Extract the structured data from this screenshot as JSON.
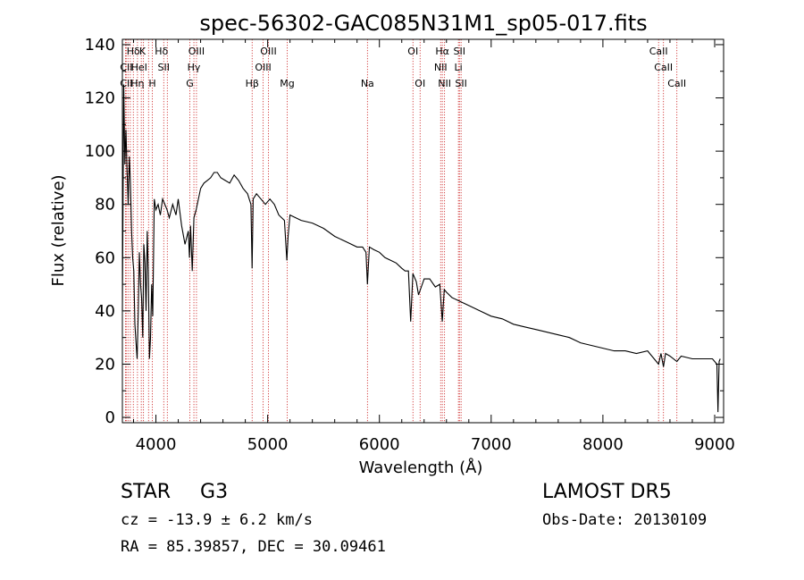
{
  "chart_data": {
    "type": "line",
    "title": "spec-56302-GAC085N31M1_sp05-017.fits",
    "xlabel": "Wavelength (Å)",
    "ylabel": "Flux (relative)",
    "xlim": [
      3700,
      9080
    ],
    "ylim": [
      -2,
      142
    ],
    "xticks": [
      4000,
      5000,
      6000,
      7000,
      8000,
      9000
    ],
    "yticks": [
      0,
      20,
      40,
      60,
      80,
      100,
      120,
      140
    ],
    "grid": false,
    "line_color": "#000000",
    "marker_color": "#cc2222",
    "series": [
      {
        "x": [
          3700,
          3712,
          3722,
          3732,
          3742,
          3752,
          3762,
          3772,
          3782,
          3792,
          3802,
          3812,
          3822,
          3832,
          3842,
          3852,
          3862,
          3872,
          3882,
          3892,
          3902,
          3912,
          3922,
          3932,
          3942,
          3952,
          3962,
          3972,
          3985,
          4000,
          4020,
          4040,
          4060,
          4080,
          4100,
          4120,
          4150,
          4180,
          4200,
          4230,
          4260,
          4290,
          4300,
          4310,
          4325,
          4340,
          4360,
          4380,
          4400,
          4430,
          4460,
          4490,
          4520,
          4550,
          4580,
          4620,
          4660,
          4700,
          4740,
          4780,
          4820,
          4850,
          4861,
          4870,
          4900,
          4940,
          4980,
          5020,
          5060,
          5100,
          5150,
          5172,
          5183,
          5200,
          5250,
          5300,
          5400,
          5500,
          5600,
          5700,
          5800,
          5850,
          5880,
          5893,
          5910,
          5950,
          6000,
          6050,
          6100,
          6150,
          6200,
          6230,
          6260,
          6280,
          6300,
          6330,
          6350,
          6400,
          6450,
          6500,
          6540,
          6563,
          6580,
          6600,
          6650,
          6700,
          6800,
          6900,
          7000,
          7100,
          7200,
          7300,
          7400,
          7500,
          7600,
          7700,
          7800,
          7900,
          8000,
          8100,
          8200,
          8300,
          8400,
          8498,
          8520,
          8542,
          8560,
          8600,
          8662,
          8700,
          8800,
          8900,
          8980,
          9020,
          9030,
          9040,
          9050
        ],
        "y": [
          40,
          125,
          95,
          108,
          92,
          80,
          98,
          88,
          70,
          60,
          55,
          35,
          28,
          22,
          40,
          62,
          50,
          45,
          30,
          65,
          58,
          40,
          70,
          55,
          22,
          30,
          50,
          38,
          82,
          78,
          80,
          76,
          82,
          80,
          78,
          75,
          80,
          76,
          82,
          72,
          65,
          70,
          60,
          72,
          55,
          75,
          78,
          82,
          86,
          88,
          89,
          90,
          92,
          92,
          90,
          89,
          88,
          91,
          89,
          86,
          84,
          80,
          56,
          82,
          84,
          82,
          80,
          82,
          80,
          76,
          74,
          59,
          68,
          76,
          75,
          74,
          73,
          71,
          68,
          66,
          64,
          64,
          62,
          50,
          64,
          63,
          62,
          60,
          59,
          58,
          56,
          55,
          55,
          36,
          54,
          51,
          46,
          52,
          52,
          49,
          50,
          36,
          48,
          47,
          45,
          44,
          42,
          40,
          38,
          37,
          35,
          34,
          33,
          32,
          31,
          30,
          28,
          27,
          26,
          25,
          25,
          24,
          25,
          20,
          24,
          19,
          24,
          23,
          21,
          23,
          22,
          22,
          22,
          20,
          2,
          21,
          22
        ]
      }
    ],
    "line_labels": [
      {
        "text": "Hδ",
        "x": 3798,
        "row": 0
      },
      {
        "text": "K",
        "x": 3880,
        "row": 0
      },
      {
        "text": "Hδ",
        "x": 4050,
        "row": 0
      },
      {
        "text": "OIII",
        "x": 4363,
        "row": 0
      },
      {
        "text": "OIII",
        "x": 5007,
        "row": 0
      },
      {
        "text": "OI",
        "x": 6300,
        "row": 0
      },
      {
        "text": "Hα",
        "x": 6563,
        "row": 0
      },
      {
        "text": "SII",
        "x": 6716,
        "row": 0
      },
      {
        "text": "CaII",
        "x": 8498,
        "row": 0
      },
      {
        "text": "CII",
        "x": 3735,
        "row": 1
      },
      {
        "text": "HeI",
        "x": 3850,
        "row": 1
      },
      {
        "text": "SII",
        "x": 4070,
        "row": 1
      },
      {
        "text": "Hγ",
        "x": 4340,
        "row": 1
      },
      {
        "text": "OIII",
        "x": 4960,
        "row": 1
      },
      {
        "text": "NII",
        "x": 6548,
        "row": 1
      },
      {
        "text": "Li",
        "x": 6707,
        "row": 1
      },
      {
        "text": "CaII",
        "x": 8542,
        "row": 1
      },
      {
        "text": "CII",
        "x": 3735,
        "row": 2
      },
      {
        "text": "Hη",
        "x": 3835,
        "row": 2
      },
      {
        "text": "H",
        "x": 3968,
        "row": 2
      },
      {
        "text": "G",
        "x": 4304,
        "row": 2
      },
      {
        "text": "Hβ",
        "x": 4861,
        "row": 2
      },
      {
        "text": "Mg",
        "x": 5175,
        "row": 2
      },
      {
        "text": "Na",
        "x": 5893,
        "row": 2
      },
      {
        "text": "OI",
        "x": 6364,
        "row": 2
      },
      {
        "text": "NII",
        "x": 6583,
        "row": 2
      },
      {
        "text": "SII",
        "x": 6731,
        "row": 2
      },
      {
        "text": "CaII",
        "x": 8662,
        "row": 2
      }
    ],
    "marker_lines": [
      3727,
      3734,
      3750,
      3771,
      3798,
      3835,
      3869,
      3889,
      3934,
      3968,
      4070,
      4102,
      4304,
      4340,
      4363,
      4861,
      4959,
      5007,
      5175,
      5893,
      6300,
      6364,
      6548,
      6563,
      6583,
      6707,
      6716,
      6731,
      8498,
      8542,
      8662
    ]
  },
  "info": {
    "object_class": "STAR",
    "subclass": "G3",
    "survey": "LAMOST DR5",
    "redshift_line": "cz = -13.9 ± 6.2 km/s",
    "obs_date": "Obs-Date: 20130109",
    "coords": "RA =  85.39857, DEC =  30.09461"
  }
}
